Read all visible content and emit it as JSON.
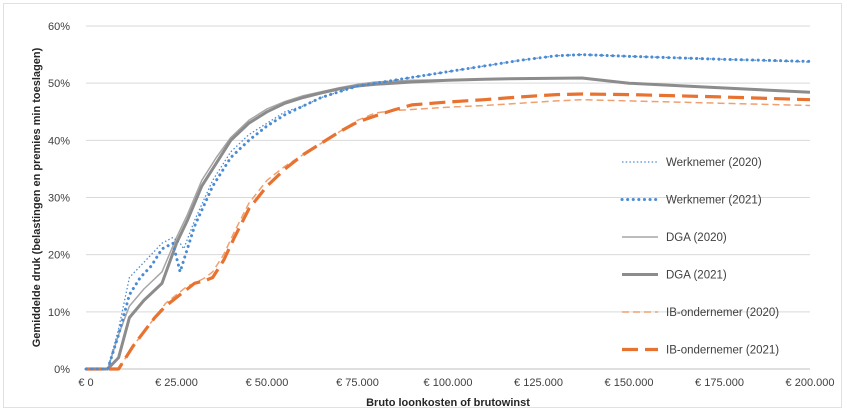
{
  "chart_data": {
    "type": "line",
    "title": "",
    "xlabel": "Bruto loonkosten of brutowinst",
    "ylabel": "Gemiddelde druk (belastingen en premies min toeslagen)",
    "xlim": [
      0,
      200000
    ],
    "ylim": [
      0,
      60
    ],
    "x_ticks": [
      0,
      25000,
      50000,
      75000,
      100000,
      125000,
      150000,
      175000,
      200000
    ],
    "x_tick_labels": [
      "€ 0",
      "€ 25.000",
      "€ 50.000",
      "€ 75.000",
      "€ 100.000",
      "€ 125.000",
      "€ 150.000",
      "€ 175.000",
      "€ 200.000"
    ],
    "y_ticks": [
      0,
      10,
      20,
      30,
      40,
      50,
      60
    ],
    "y_tick_labels": [
      "0%",
      "10%",
      "20%",
      "30%",
      "40%",
      "50%",
      "60%"
    ],
    "grid": "horizontal",
    "legend_position": "right",
    "series": [
      {
        "name": "Werknemer (2020)",
        "color": "#4a8bd4",
        "style": "dotted-thin",
        "x": [
          0,
          6000,
          9000,
          12000,
          15000,
          18000,
          21000,
          24000,
          26000,
          27000,
          30000,
          35000,
          40000,
          45000,
          50000,
          55000,
          60000,
          65000,
          70000,
          75000,
          80000,
          90000,
          100000,
          110000,
          120000,
          130000,
          137000,
          150000,
          175000,
          200000
        ],
        "y": [
          0,
          0,
          7,
          16,
          18,
          20,
          22,
          23,
          22,
          21,
          26,
          33,
          38,
          41,
          43,
          45,
          46,
          47.5,
          48.5,
          49.5,
          50,
          51,
          52,
          53,
          54,
          54.8,
          55,
          54.7,
          54.2,
          53.7
        ]
      },
      {
        "name": "Werknemer (2021)",
        "color": "#4a8bd4",
        "style": "dotted-thick",
        "x": [
          0,
          6000,
          9000,
          12000,
          15000,
          18000,
          21000,
          24000,
          26000,
          27000,
          30000,
          35000,
          40000,
          45000,
          50000,
          55000,
          60000,
          65000,
          70000,
          75000,
          80000,
          90000,
          100000,
          110000,
          120000,
          130000,
          137000,
          150000,
          175000,
          200000
        ],
        "y": [
          0,
          0,
          6,
          13,
          16,
          18,
          21,
          22,
          17,
          19,
          25,
          32,
          37,
          40,
          42.5,
          44.5,
          46,
          47.5,
          48.5,
          49.5,
          50,
          51,
          52,
          53,
          54,
          54.8,
          55,
          54.7,
          54.2,
          53.8
        ]
      },
      {
        "name": "DGA (2020)",
        "color": "#a6a6a6",
        "style": "solid-thin",
        "x": [
          0,
          6000,
          9000,
          12000,
          16000,
          21000,
          25000,
          28000,
          32000,
          36000,
          40000,
          45000,
          50000,
          55000,
          60000,
          65000,
          70000,
          75000,
          80000,
          90000,
          100000,
          110000,
          120000,
          137000,
          150000,
          175000,
          200000
        ],
        "y": [
          0,
          0,
          6,
          11,
          14,
          17,
          23,
          27,
          33,
          37,
          40.5,
          43.5,
          45.5,
          46.8,
          47.8,
          48.5,
          49.2,
          49.8,
          50.2,
          50.5,
          50.6,
          50.7,
          50.8,
          50.9,
          50,
          49.2,
          48.5
        ]
      },
      {
        "name": "DGA (2021)",
        "color": "#8c8c8c",
        "style": "solid-thick",
        "x": [
          0,
          6000,
          9000,
          12000,
          16000,
          21000,
          25000,
          28000,
          32000,
          36000,
          40000,
          45000,
          50000,
          55000,
          60000,
          65000,
          70000,
          75000,
          80000,
          90000,
          100000,
          110000,
          120000,
          137000,
          150000,
          175000,
          200000
        ],
        "y": [
          0,
          0,
          2,
          9,
          12,
          15,
          22,
          26,
          32,
          36,
          40,
          43,
          45,
          46.5,
          47.5,
          48.3,
          49,
          49.5,
          49.8,
          50.2,
          50.5,
          50.7,
          50.8,
          50.9,
          50,
          49.2,
          48.4
        ]
      },
      {
        "name": "IB-ondernemer (2020)",
        "color": "#f0a070",
        "style": "dashed-thin",
        "x": [
          0,
          9000,
          10000,
          13000,
          16000,
          19000,
          22000,
          25000,
          28000,
          30000,
          33000,
          35000,
          38000,
          41000,
          45000,
          50000,
          55000,
          60000,
          65000,
          70000,
          75000,
          80000,
          85000,
          90000,
          100000,
          110000,
          120000,
          130000,
          137000,
          150000,
          175000,
          200000
        ],
        "y": [
          0,
          0,
          1,
          4,
          6.5,
          9,
          11.5,
          13,
          14.5,
          15,
          16,
          17,
          20,
          24,
          29,
          33,
          35.5,
          37.5,
          39.5,
          41.5,
          43.5,
          44.8,
          45.2,
          45.4,
          45.8,
          46.1,
          46.5,
          46.9,
          47.1,
          46.9,
          46.5,
          46.1
        ]
      },
      {
        "name": "IB-ondernemer (2021)",
        "color": "#e87330",
        "style": "dashed-thick",
        "x": [
          0,
          9000,
          10000,
          13000,
          16000,
          19000,
          22000,
          25000,
          28000,
          30000,
          33000,
          35000,
          38000,
          41000,
          45000,
          50000,
          55000,
          60000,
          65000,
          70000,
          75000,
          80000,
          85000,
          90000,
          100000,
          110000,
          120000,
          130000,
          137000,
          150000,
          175000,
          200000
        ],
        "y": [
          0,
          0,
          1,
          4,
          6.5,
          9,
          11,
          12.5,
          14,
          15,
          15.5,
          16,
          19,
          23,
          28,
          32,
          35,
          37.5,
          39.5,
          41.5,
          43.2,
          44.3,
          45.3,
          46.2,
          46.7,
          47.1,
          47.6,
          48,
          48.1,
          48,
          47.6,
          47.1
        ]
      }
    ]
  }
}
